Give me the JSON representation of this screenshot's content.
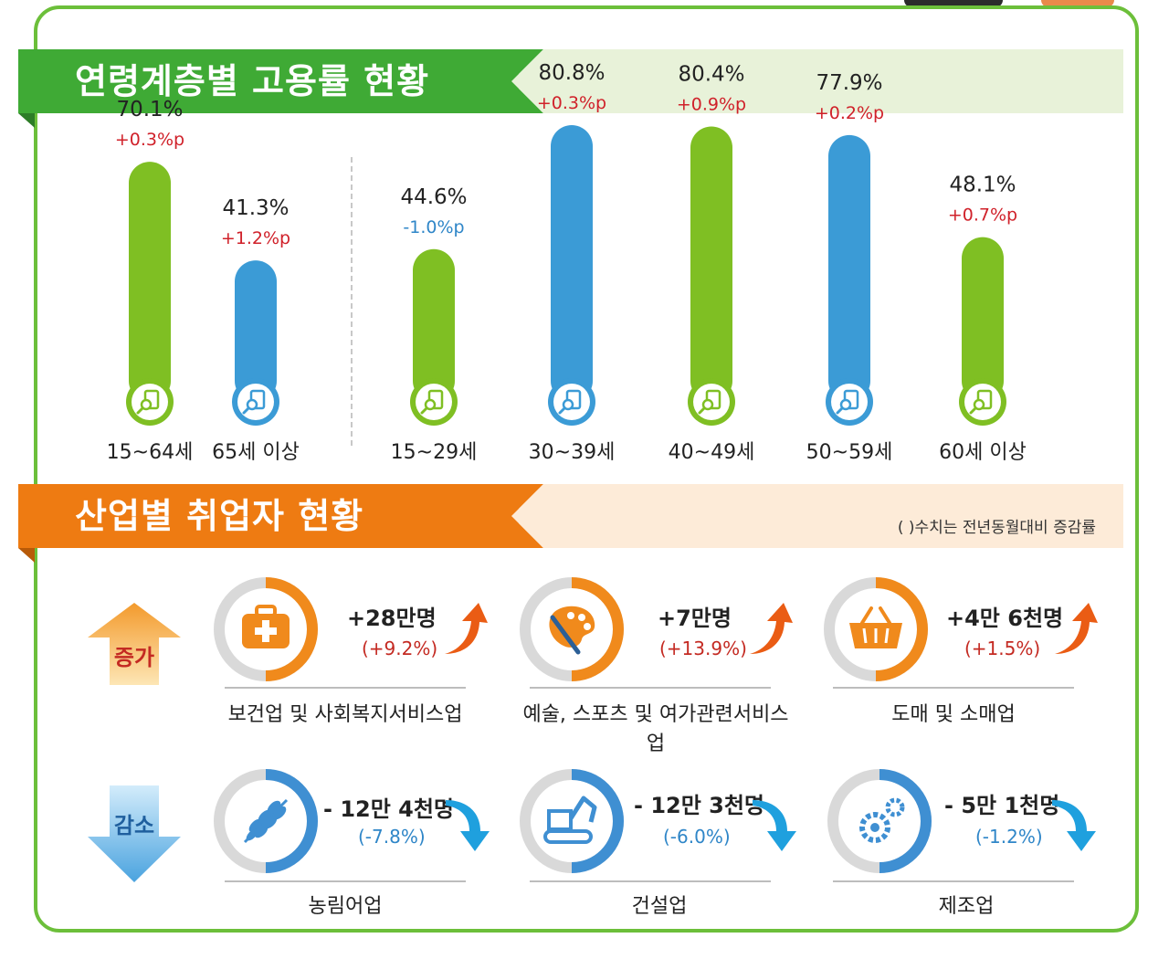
{
  "section1": {
    "title": "연령계층별 고용률 현황",
    "colors": {
      "banner": "#3faa35",
      "banner_light": "#e8f2d9",
      "green": "#7fbf23",
      "blue": "#3b9bd6",
      "up": "#d0212a",
      "down": "#2f86c8"
    }
  },
  "chart_data": {
    "type": "bar",
    "title": "연령계층별 고용률 현황",
    "unit": "%",
    "categories": [
      "15~64세",
      "65세 이상",
      "15~29세",
      "30~39세",
      "40~49세",
      "50~59세",
      "60세 이상"
    ],
    "series": [
      {
        "values": [
          70.1,
          41.3,
          44.6,
          80.8,
          80.4,
          77.9,
          48.1
        ]
      }
    ],
    "value_labels": [
      "70.1%",
      "41.3%",
      "44.6%",
      "80.8%",
      "80.4%",
      "77.9%",
      "48.1%"
    ],
    "changes": [
      "+0.3%p",
      "+1.2%p",
      "-1.0%p",
      "+0.3%p",
      "+0.9%p",
      "+0.2%p",
      "+0.7%p"
    ],
    "bar_colors": [
      "green",
      "blue",
      "green",
      "blue",
      "green",
      "blue",
      "green"
    ],
    "icon": "document-search-icon"
  },
  "section2": {
    "title": "산업별 취업자 현황",
    "note": "(  )수치는 전년동월대비 증감률",
    "colors": {
      "banner": "#ee7b12",
      "banner_light": "#fdebd8",
      "ring_orange": "#f08a1c",
      "ring_blue": "#3f8fd2",
      "ring_grey": "#d9d9d9"
    },
    "increase_label": "증가",
    "decrease_label": "감소",
    "increase": [
      {
        "name": "보건업 및 사회복지서비스업",
        "amount": "+28만명",
        "rate": "(+9.2%)",
        "icon": "first-aid-kit-icon"
      },
      {
        "name": "예술, 스포츠 및 여가관련서비스업",
        "amount": "+7만명",
        "rate": "(+13.9%)",
        "icon": "palette-brush-icon"
      },
      {
        "name": "도매 및 소매업",
        "amount": "+4만 6천명",
        "rate": "(+1.5%)",
        "icon": "shopping-basket-icon"
      }
    ],
    "decrease": [
      {
        "name": "농림어업",
        "amount": "- 12만 4천명",
        "rate": "(-7.8%)",
        "icon": "wheat-icon"
      },
      {
        "name": "건설업",
        "amount": "- 12만 3천명",
        "rate": "(-6.0%)",
        "icon": "excavator-icon"
      },
      {
        "name": "제조업",
        "amount": "- 5만 1천명",
        "rate": "(-1.2%)",
        "icon": "gears-icon"
      }
    ]
  }
}
